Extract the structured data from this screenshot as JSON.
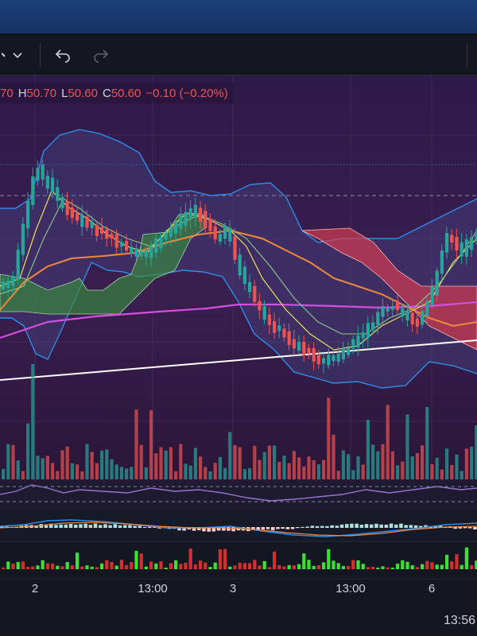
{
  "toolbar": {
    "dropdown_icon": "chevron-down-icon",
    "undo_icon": "undo-icon",
    "redo_icon": "redo-icon"
  },
  "legend": {
    "open_partial": "70",
    "high_label": "H",
    "high_value": "50.70",
    "low_label": "L",
    "low_value": "50.60",
    "close_label": "C",
    "close_value": "50.60",
    "change": "−0.10 (−0.20%)"
  },
  "time_axis": {
    "labels": [
      "2",
      "13:00",
      "3",
      "13:00",
      "6"
    ]
  },
  "clock": "13:56",
  "colors": {
    "background_top": "#2a1a45",
    "up_candle": "#26a69a",
    "down_candle": "#ef5350",
    "bollinger": "#2196f3",
    "ma_long": "#e040fb",
    "ma_mid": "#ff9800",
    "trendline": "#ffffff"
  }
}
